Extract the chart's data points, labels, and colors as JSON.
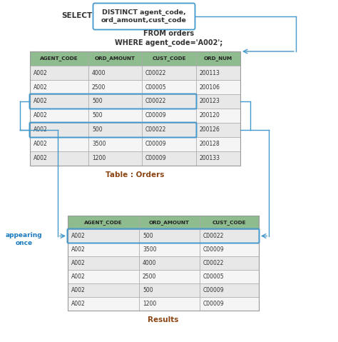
{
  "sql_box_text": "DISTINCT agent_code,\nord_amount,cust_code",
  "sql_from": "FROM orders",
  "sql_where": "WHERE agent_code='A002';",
  "orders_headers": [
    "AGENT_CODE",
    "ORD_AMOUNT",
    "CUST_CODE",
    "ORD_NUM"
  ],
  "orders_rows": [
    [
      "A002",
      "4000",
      "C00022",
      "200113"
    ],
    [
      "A002",
      "2500",
      "C00005",
      "200106"
    ],
    [
      "A002",
      "500",
      "C00022",
      "200123"
    ],
    [
      "A002",
      "500",
      "C00009",
      "200120"
    ],
    [
      "A002",
      "500",
      "C00022",
      "200126"
    ],
    [
      "A002",
      "3500",
      "C00009",
      "200128"
    ],
    [
      "A002",
      "1200",
      "C00009",
      "200133"
    ]
  ],
  "orders_highlight_rows": [
    2,
    4
  ],
  "orders_label": "Table : Orders",
  "results_headers": [
    "AGENT_CODE",
    "ORD_AMOUNT",
    "CUST_CODE"
  ],
  "results_rows": [
    [
      "A002",
      "500",
      "C00022"
    ],
    [
      "A002",
      "3500",
      "C00009"
    ],
    [
      "A002",
      "4000",
      "C00022"
    ],
    [
      "A002",
      "2500",
      "C00005"
    ],
    [
      "A002",
      "500",
      "C00009"
    ],
    [
      "A002",
      "1200",
      "C00009"
    ]
  ],
  "results_highlight_rows": [
    0
  ],
  "results_label": "Results",
  "appearing_once_text": "appearing\nonce",
  "header_bg": "#8fbc8f",
  "row_bg_even": "#e8e8e8",
  "row_bg_odd": "#f5f5f5",
  "highlight_border": "#4499cc",
  "sql_box_border": "#4499cc",
  "appearing_color": "#1a7abf",
  "arrow_color": "#4499cc",
  "sql_text_color": "#5c1010",
  "label_color": "#8b4513"
}
